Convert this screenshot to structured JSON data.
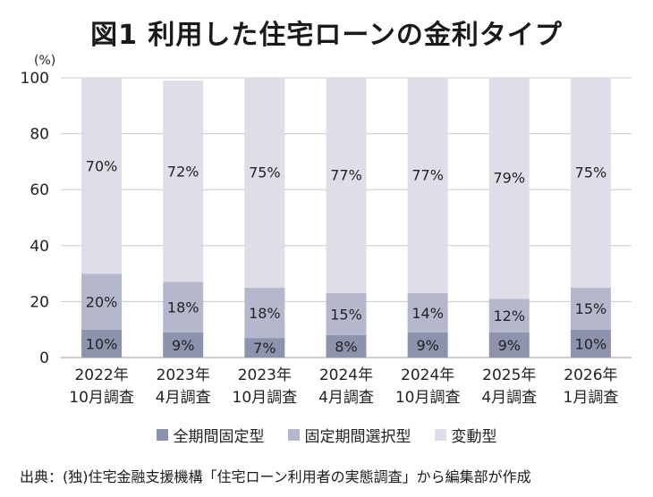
{
  "chart_data": {
    "type": "stacked-bar",
    "title": "図1 利用した住宅ローンの金利タイプ",
    "ylabel": "(%)",
    "ylim": [
      0,
      100
    ],
    "yticks": [
      0,
      20,
      40,
      60,
      80,
      100
    ],
    "grid": true,
    "categories": [
      [
        "2022年",
        "10月調査"
      ],
      [
        "2023年",
        "4月調査"
      ],
      [
        "2023年",
        "10月調査"
      ],
      [
        "2024年",
        "4月調査"
      ],
      [
        "2024年",
        "10月調査"
      ],
      [
        "2025年",
        "4月調査"
      ],
      [
        "2026年",
        "1月調査"
      ]
    ],
    "series": [
      {
        "name": "全期間固定型",
        "color": "#8e93ad",
        "values": [
          10,
          9,
          7,
          8,
          9,
          9,
          10
        ],
        "labels": [
          "10%",
          "9%",
          "7%",
          "8%",
          "9%",
          "9%",
          "10%"
        ]
      },
      {
        "name": "固定期間選択型",
        "color": "#b5b8cd",
        "values": [
          20,
          18,
          18,
          15,
          14,
          12,
          15
        ],
        "labels": [
          "20%",
          "18%",
          "18%",
          "15%",
          "14%",
          "12%",
          "15%"
        ]
      },
      {
        "name": "変動型",
        "color": "#dddee8",
        "values": [
          70,
          72,
          75,
          77,
          77,
          79,
          75
        ],
        "labels": [
          "70%",
          "72%",
          "75%",
          "77%",
          "77%",
          "79%",
          "75%"
        ]
      }
    ],
    "legend_position": "bottom",
    "source": "出典：(独)住宅金融支援機構「住宅ローン利用者の実態調査」から編集部が作成"
  }
}
